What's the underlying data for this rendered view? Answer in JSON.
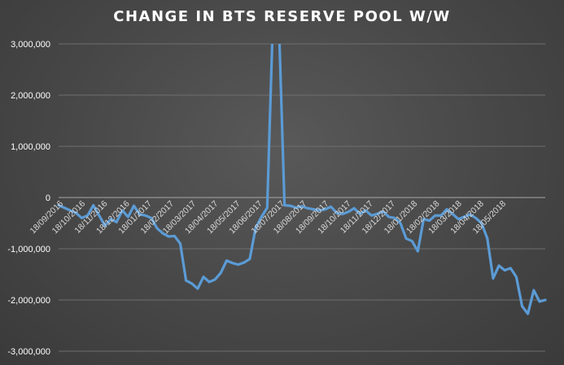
{
  "chart_data": {
    "type": "line",
    "title": "CHANGE IN BTS RESERVE POOL W/W",
    "ylim": [
      -3000000,
      3000000
    ],
    "y_ticks": [
      3000000,
      2000000,
      1000000,
      0,
      -1000000,
      -2000000,
      -3000000
    ],
    "y_tick_labels": [
      "3,000,000",
      "2,000,000",
      "1,000,000",
      "0",
      "-1,000,000",
      "-2,000,000",
      "-3,000,000"
    ],
    "x_tick_labels": [
      "18/09/2016",
      "18/10/2016",
      "18/11/2016",
      "18/12/2016",
      "18/01/2017",
      "18/02/2017",
      "18/03/2017",
      "18/04/2017",
      "18/05/2017",
      "18/06/2017",
      "18/07/2017",
      "18/08/2017",
      "18/09/2017",
      "18/10/2017",
      "18/11/2017",
      "18/12/2017",
      "18/01/2018",
      "18/02/2018",
      "18/03/2018",
      "18/04/2018",
      "18/05/2018"
    ],
    "grid": true,
    "line_color": "#5b9bd5",
    "series": [
      {
        "values": [
          -150000,
          -200000,
          -250000,
          -300000,
          -400000,
          -350000,
          -150000,
          -350000,
          -550000,
          -420000,
          -480000,
          -250000,
          -380000,
          -160000,
          -330000,
          -350000,
          -400000,
          -600000,
          -700000,
          -760000,
          -750000,
          -900000,
          -1620000,
          -1680000,
          -1780000,
          -1550000,
          -1650000,
          -1600000,
          -1470000,
          -1230000,
          -1280000,
          -1310000,
          -1270000,
          -1200000,
          -600000,
          -380000,
          -200000,
          3500000,
          3500000,
          -150000,
          -160000,
          -200000,
          -170000,
          -210000,
          -230000,
          -250000,
          -230000,
          -180000,
          -300000,
          -320000,
          -280000,
          -210000,
          -320000,
          -250000,
          -350000,
          -320000,
          -270000,
          -380000,
          -400000,
          -500000,
          -800000,
          -850000,
          -1050000,
          -420000,
          -450000,
          -350000,
          -350000,
          -230000,
          -320000,
          -420000,
          -380000,
          -330000,
          -400000,
          -500000,
          -800000,
          -1580000,
          -1330000,
          -1420000,
          -1380000,
          -1550000,
          -2120000,
          -2270000,
          -1810000,
          -2030000,
          -2000000
        ]
      }
    ]
  }
}
